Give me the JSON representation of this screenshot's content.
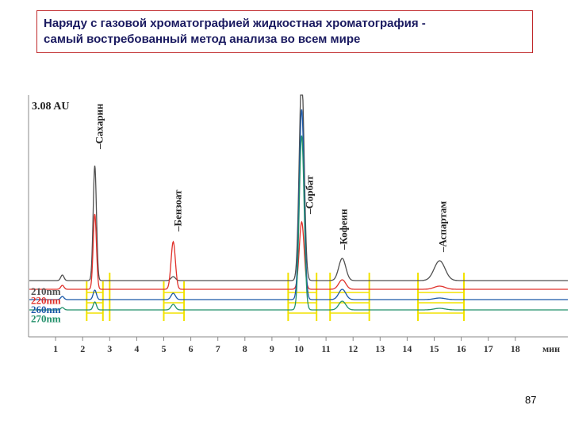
{
  "slide": {
    "title_line1": "Наряду с газовой хроматографией жидкостная хроматография -",
    "title_line2": "самый востребованный метод анализа во всем мире",
    "page_number": "87"
  },
  "chart_data": {
    "type": "line",
    "title": "",
    "au_label": "3.08 AU",
    "xlabel": "мин",
    "xlim": [
      0,
      20
    ],
    "xticks": [
      1,
      2,
      3,
      4,
      5,
      6,
      7,
      8,
      9,
      10,
      11,
      12,
      13,
      14,
      15,
      16,
      17,
      18
    ],
    "series": [
      {
        "name": "210nm",
        "color": "#505050",
        "baseline": 0.0
      },
      {
        "name": "220nm",
        "color": "#e0302a",
        "baseline": -0.11
      },
      {
        "name": "260nm",
        "color": "#1a58a8",
        "baseline": -0.24
      },
      {
        "name": "270nm",
        "color": "#22906a",
        "baseline": -0.37
      }
    ],
    "peaks": [
      {
        "label": "",
        "time": 1.25,
        "heights": [
          0.07,
          0.05,
          0.04,
          0.03
        ],
        "width": 0.06
      },
      {
        "label": "Сахарин",
        "time": 2.45,
        "heights": [
          1.45,
          0.95,
          0.12,
          0.1
        ],
        "width": 0.06
      },
      {
        "label": "Бензоат",
        "time": 5.35,
        "heights": [
          0.05,
          0.6,
          0.08,
          0.07
        ],
        "width": 0.08
      },
      {
        "label": "Сорбат",
        "time": 10.1,
        "heights": [
          2.6,
          0.85,
          2.4,
          2.2
        ],
        "width": 0.09
      },
      {
        "label": "Кофеин",
        "time": 11.6,
        "heights": [
          0.28,
          0.12,
          0.13,
          0.11
        ],
        "width": 0.13
      },
      {
        "label": "Аспартам",
        "time": 15.2,
        "heights": [
          0.25,
          0.04,
          0.02,
          0.02
        ],
        "width": 0.2
      }
    ],
    "markers": [
      {
        "start": 2.15,
        "end": 2.75,
        "top_series": 1
      },
      {
        "start": 3.0,
        "end": 3.0,
        "top_series": 0
      },
      {
        "start": 5.0,
        "end": 5.75,
        "top_series": 1
      },
      {
        "start": 9.6,
        "end": 10.65,
        "top_series": 0
      },
      {
        "start": 11.15,
        "end": 12.6,
        "top_series": 0
      },
      {
        "start": 14.4,
        "end": 16.1,
        "top_series": 0
      }
    ]
  }
}
